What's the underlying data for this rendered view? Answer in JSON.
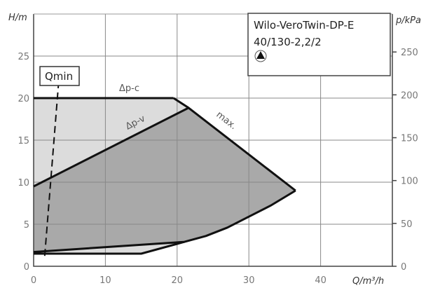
{
  "chart_data": {
    "type": "area",
    "xlabel": "Q/m³/h",
    "ylabel": "H/m",
    "y2label": "p/kPa",
    "xlim": [
      0,
      50
    ],
    "ylim": [
      0,
      30
    ],
    "xticks": [
      0,
      10,
      20,
      30,
      40
    ],
    "yticks": [
      0,
      5,
      10,
      15,
      20,
      25
    ],
    "y2ticks": [
      0,
      50,
      100,
      150,
      200,
      250
    ],
    "grid": true,
    "legend": {
      "position": "top-right",
      "line1": "Wilo-VeroTwin-DP-E",
      "line2": "40/130-2,2/2",
      "icon": "pump-symbol-icon"
    },
    "regions": [
      {
        "label": "Δp-c",
        "color": "#dcdcdc",
        "points": [
          [
            0,
            20
          ],
          [
            19.5,
            20
          ],
          [
            21.5,
            18.8
          ],
          [
            0,
            9.5
          ]
        ]
      },
      {
        "label": "",
        "color": "#dcdcdc",
        "points": [
          [
            0,
            1.5
          ],
          [
            15,
            1.5
          ],
          [
            21,
            2.9
          ],
          [
            0,
            1.7
          ]
        ]
      },
      {
        "label": "Δp-v",
        "color": "#a9a9a9",
        "points": [
          [
            0,
            9.5
          ],
          [
            21.5,
            18.8
          ],
          [
            36.5,
            9
          ],
          [
            33,
            7.2
          ],
          [
            30,
            5.9
          ],
          [
            27,
            4.6
          ],
          [
            24,
            3.6
          ],
          [
            21,
            2.9
          ],
          [
            0,
            1.7
          ]
        ]
      }
    ],
    "curves": [
      {
        "label": "Δp-c",
        "points": [
          [
            0,
            20
          ],
          [
            19.5,
            20
          ]
        ]
      },
      {
        "label": "max.",
        "points": [
          [
            19.5,
            20
          ],
          [
            21.5,
            18.9
          ],
          [
            36.5,
            9
          ]
        ]
      },
      {
        "label": "Δp-v",
        "points": [
          [
            0,
            9.5
          ],
          [
            21.5,
            18.8
          ]
        ]
      },
      {
        "label": "",
        "points": [
          [
            36.5,
            9
          ],
          [
            33,
            7.2
          ],
          [
            30,
            5.9
          ],
          [
            27,
            4.6
          ],
          [
            24,
            3.6
          ],
          [
            21,
            2.9
          ],
          [
            0,
            1.7
          ]
        ]
      },
      {
        "label": "",
        "points": [
          [
            0,
            1.5
          ],
          [
            15,
            1.5
          ],
          [
            21,
            2.9
          ]
        ]
      }
    ],
    "qmin": {
      "label": "Qmin",
      "points": [
        [
          3.5,
          22
        ],
        [
          1.5,
          0.8
        ]
      ]
    }
  }
}
